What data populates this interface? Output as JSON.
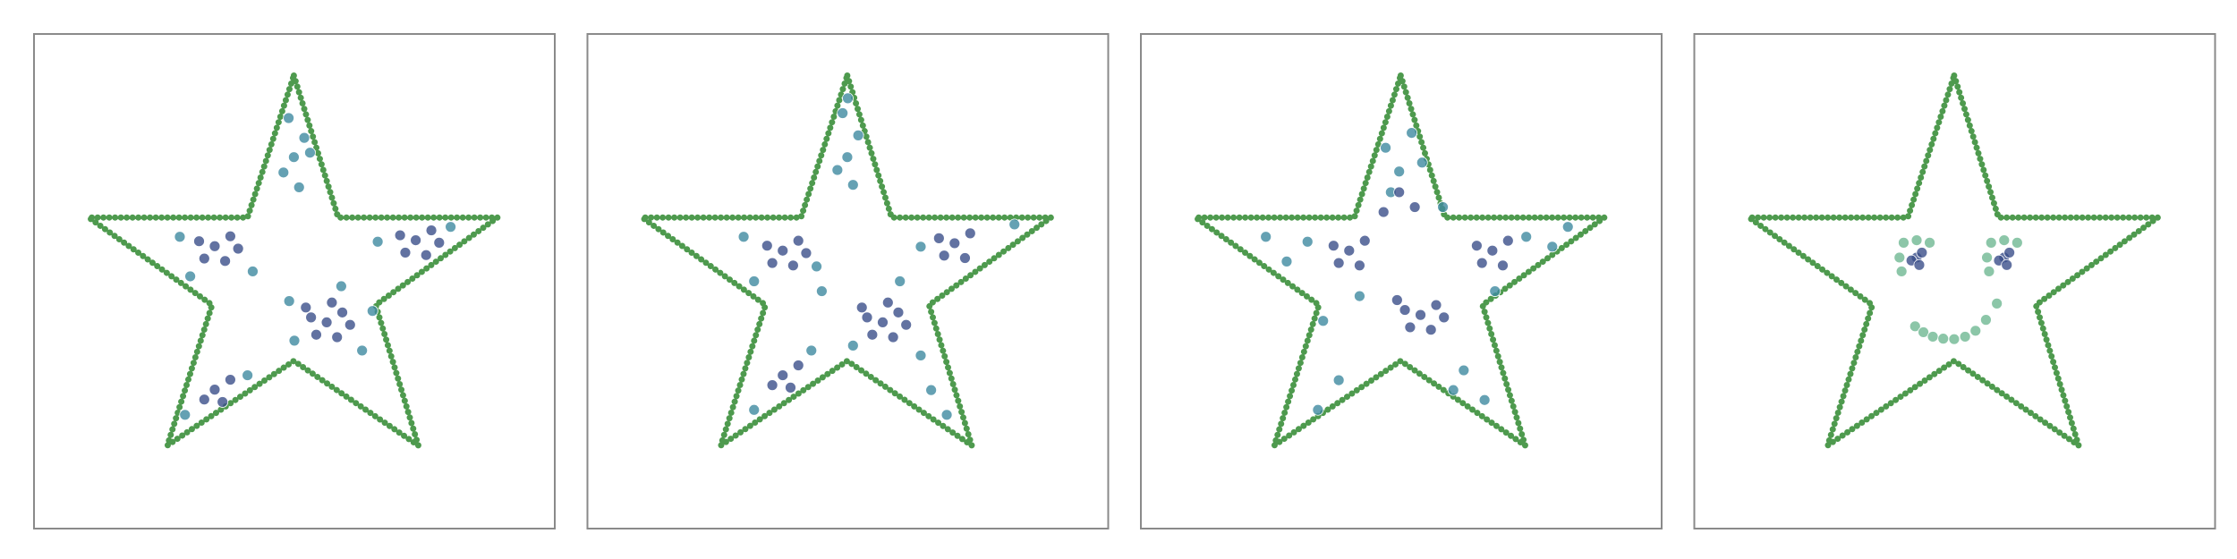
{
  "chart_data": [
    {
      "type": "scatter",
      "xlim": [
        0,
        10
      ],
      "ylim": [
        0,
        10
      ],
      "series": [
        {
          "mode": "line",
          "color": "#4e9a4e",
          "x": [
            4.99,
            5.84,
            8.9,
            6.56,
            7.38,
            4.99,
            2.56,
            3.42,
            1.05,
            4.1,
            4.99
          ],
          "y": [
            9.16,
            6.29,
            6.29,
            4.52,
            1.68,
            3.39,
            1.68,
            4.52,
            6.29,
            6.29,
            9.16
          ]
        },
        {
          "mode": "markers",
          "color": "#3e8aa0",
          "x": [
            4.99,
            5.19,
            4.79,
            5.09,
            4.89,
            5.3,
            6.3,
            5.0,
            5.9,
            6.5,
            4.9,
            2.8,
            4.2,
            3.0,
            6.6,
            8.0,
            2.9,
            4.1
          ],
          "y": [
            7.51,
            7.9,
            7.2,
            6.9,
            8.3,
            7.6,
            3.6,
            3.8,
            4.9,
            4.4,
            4.6,
            5.9,
            5.2,
            5.1,
            5.8,
            6.1,
            2.3,
            3.1
          ]
        },
        {
          "mode": "markers",
          "color": "#3b4f8a",
          "x": [
            3.47,
            3.77,
            3.17,
            3.67,
            3.27,
            3.92,
            7.33,
            7.63,
            7.03,
            7.53,
            7.13,
            7.78,
            5.62,
            5.92,
            5.32,
            5.82,
            5.42,
            6.07,
            5.22,
            5.72,
            3.47,
            3.77,
            3.27,
            3.62
          ],
          "y": [
            5.71,
            5.91,
            5.81,
            5.41,
            5.46,
            5.66,
            5.83,
            6.03,
            5.93,
            5.53,
            5.58,
            5.78,
            4.17,
            4.37,
            4.27,
            3.87,
            3.92,
            4.12,
            4.47,
            4.57,
            2.81,
            3.01,
            2.61,
            2.56
          ]
        }
      ]
    },
    {
      "type": "scatter",
      "xlim": [
        0,
        10
      ],
      "ylim": [
        0,
        10
      ],
      "series": [
        {
          "mode": "line",
          "color": "#4e9a4e",
          "x": [
            4.99,
            5.84,
            8.9,
            6.56,
            7.38,
            4.99,
            2.56,
            3.42,
            1.05,
            4.1,
            4.99
          ],
          "y": [
            9.16,
            6.29,
            6.29,
            4.52,
            1.68,
            3.39,
            1.68,
            4.52,
            6.29,
            6.29,
            9.16
          ]
        },
        {
          "mode": "markers",
          "color": "#3e8aa0",
          "x": [
            4.99,
            5.2,
            4.8,
            5.1,
            4.9,
            5.0,
            6.4,
            5.1,
            6.0,
            6.6,
            3.0,
            4.4,
            3.2,
            6.4,
            8.2,
            3.2,
            4.3,
            6.9,
            4.5
          ],
          "y": [
            7.51,
            7.95,
            7.25,
            6.95,
            8.4,
            8.7,
            3.5,
            3.7,
            5.0,
            2.8,
            5.9,
            5.3,
            5.0,
            5.7,
            6.15,
            2.4,
            3.6,
            2.3,
            4.8
          ]
        },
        {
          "mode": "markers",
          "color": "#3b4f8a",
          "x": [
            3.75,
            4.05,
            3.45,
            3.95,
            3.55,
            4.2,
            7.05,
            7.35,
            6.75,
            7.25,
            6.85,
            5.67,
            5.97,
            5.37,
            5.87,
            5.47,
            6.12,
            5.27,
            5.77,
            3.75,
            4.05,
            3.55,
            3.9
          ],
          "y": [
            5.62,
            5.82,
            5.72,
            5.32,
            5.37,
            5.57,
            5.77,
            5.97,
            5.87,
            5.47,
            5.52,
            4.17,
            4.37,
            4.27,
            3.87,
            3.92,
            4.12,
            4.47,
            4.57,
            3.1,
            3.3,
            2.9,
            2.85
          ]
        }
      ]
    },
    {
      "type": "scatter",
      "xlim": [
        0,
        10
      ],
      "ylim": [
        0,
        10
      ],
      "series": [
        {
          "mode": "line",
          "color": "#4e9a4e",
          "x": [
            4.99,
            5.84,
            8.9,
            6.56,
            7.38,
            4.99,
            2.56,
            3.42,
            1.05,
            4.1,
            4.99
          ],
          "y": [
            9.16,
            6.29,
            6.29,
            4.52,
            1.68,
            3.39,
            1.68,
            4.52,
            6.29,
            6.29,
            9.16
          ]
        },
        {
          "mode": "markers",
          "color": "#3e8aa0",
          "x": [
            4.96,
            5.2,
            4.7,
            5.4,
            4.8,
            3.2,
            2.8,
            3.5,
            7.4,
            7.9,
            6.8,
            6.2,
            3.8,
            3.4,
            6.0,
            6.6,
            4.2,
            5.8,
            2.4,
            8.2
          ],
          "y": [
            7.22,
            8.0,
            7.7,
            7.4,
            6.8,
            5.8,
            5.4,
            4.2,
            5.9,
            5.7,
            4.8,
            3.2,
            3.0,
            2.4,
            2.8,
            2.6,
            4.7,
            6.5,
            5.9,
            6.1
          ]
        },
        {
          "mode": "markers",
          "color": "#3b4f8a",
          "x": [
            5.37,
            5.67,
            5.07,
            5.57,
            5.17,
            5.82,
            4.92,
            4.0,
            4.3,
            3.7,
            4.2,
            3.8,
            6.75,
            7.05,
            6.45,
            6.95,
            6.55,
            4.96,
            5.26,
            4.66
          ],
          "y": [
            4.32,
            4.52,
            4.42,
            4.02,
            4.07,
            4.27,
            4.62,
            5.62,
            5.82,
            5.72,
            5.32,
            5.37,
            5.62,
            5.82,
            5.72,
            5.32,
            5.37,
            6.8,
            6.5,
            6.4
          ]
        }
      ]
    },
    {
      "type": "scatter",
      "xlim": [
        0,
        10
      ],
      "ylim": [
        0,
        10
      ],
      "series": [
        {
          "mode": "line",
          "color": "#4e9a4e",
          "x": [
            4.99,
            5.84,
            8.9,
            6.56,
            7.38,
            4.99,
            2.56,
            3.42,
            1.05,
            4.1,
            4.99
          ],
          "y": [
            9.16,
            6.29,
            6.29,
            4.52,
            1.68,
            3.39,
            1.68,
            4.52,
            6.29,
            6.29,
            9.16
          ]
        },
        {
          "mode": "markers",
          "color": "#6fb892",
          "x": [
            3.94,
            4.02,
            4.27,
            4.52,
            3.98,
            5.62,
            5.7,
            5.95,
            6.2,
            5.66,
            4.24,
            4.4,
            4.58,
            4.78,
            4.99,
            5.2,
            5.4,
            5.6,
            5.81
          ],
          "y": [
            5.48,
            5.78,
            5.83,
            5.78,
            5.2,
            5.48,
            5.78,
            5.83,
            5.78,
            5.2,
            4.09,
            3.97,
            3.88,
            3.84,
            3.83,
            3.88,
            4.0,
            4.22,
            4.55
          ]
        },
        {
          "mode": "markers",
          "color": "#3b4f8a",
          "x": [
            4.27,
            4.37,
            4.17,
            4.32,
            5.95,
            6.05,
            5.85,
            6.0
          ],
          "y": [
            5.48,
            5.58,
            5.42,
            5.33,
            5.48,
            5.58,
            5.42,
            5.33
          ]
        }
      ]
    }
  ]
}
